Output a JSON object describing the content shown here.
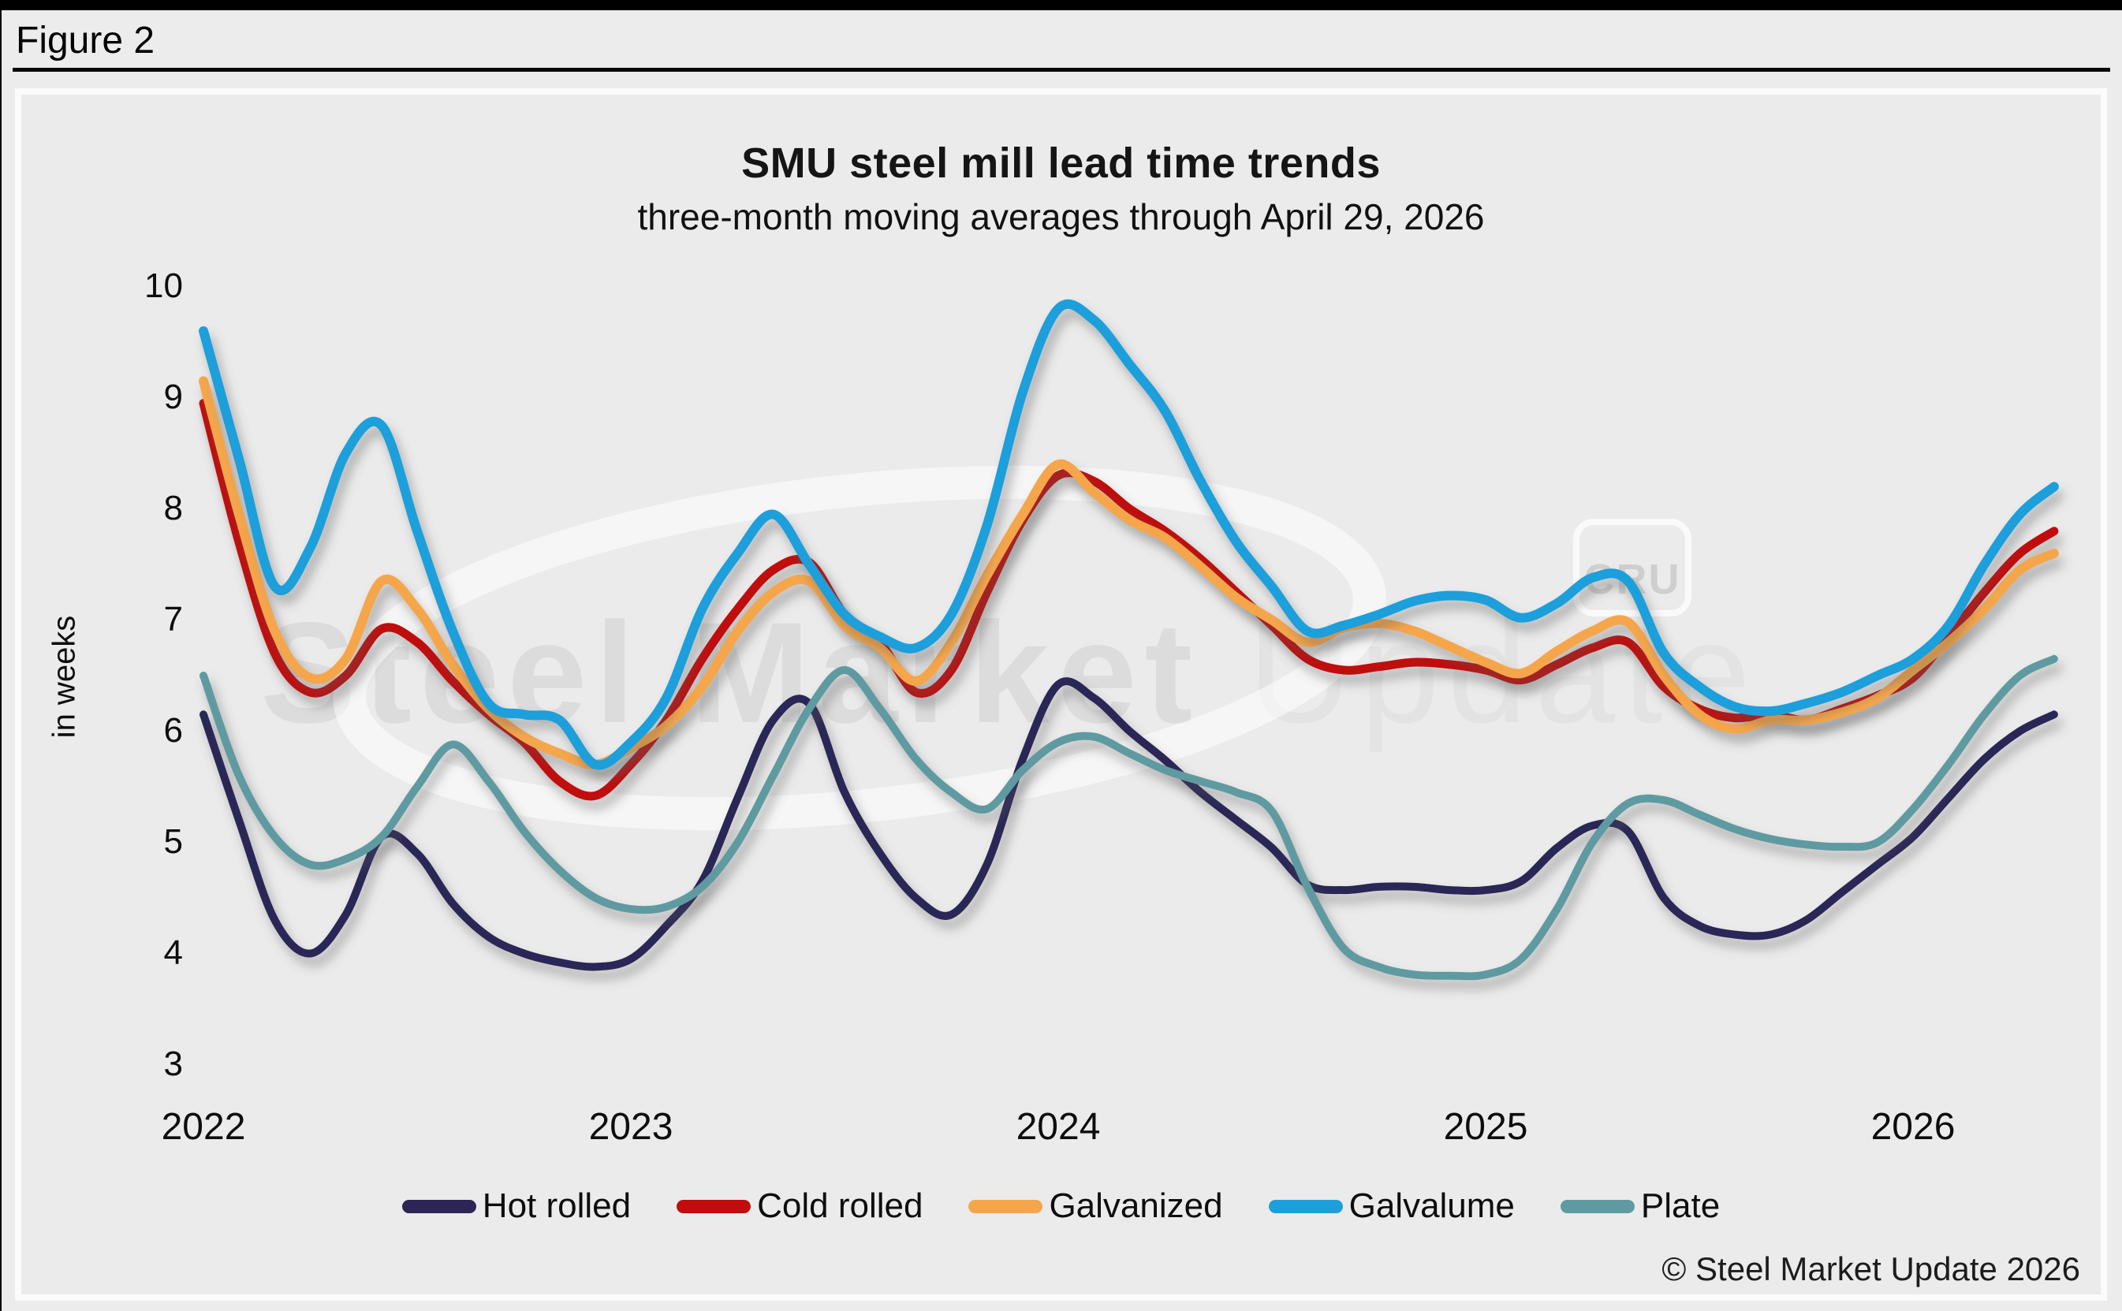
{
  "figure_label": "Figure 2",
  "chart_data": {
    "type": "line",
    "title": "SMU steel mill lead time trends",
    "subtitle": "three-month moving averages through April 29, 2026",
    "xlabel": "",
    "ylabel": "in weeks",
    "ylim": [
      3,
      10
    ],
    "yticks": [
      10,
      9,
      8,
      7,
      6,
      5,
      4,
      3
    ],
    "xticks": [
      2022,
      2023,
      2024,
      2025,
      2026
    ],
    "x_domain": [
      2022.0,
      2026.33
    ],
    "grid": false,
    "legend_position": "bottom",
    "x": [
      2022.0,
      2022.083,
      2022.167,
      2022.25,
      2022.333,
      2022.417,
      2022.5,
      2022.583,
      2022.667,
      2022.75,
      2022.833,
      2022.917,
      2023.0,
      2023.083,
      2023.167,
      2023.25,
      2023.333,
      2023.417,
      2023.5,
      2023.583,
      2023.667,
      2023.75,
      2023.833,
      2023.917,
      2024.0,
      2024.083,
      2024.167,
      2024.25,
      2024.333,
      2024.417,
      2024.5,
      2024.583,
      2024.667,
      2024.75,
      2024.833,
      2024.917,
      2025.0,
      2025.083,
      2025.167,
      2025.25,
      2025.333,
      2025.417,
      2025.5,
      2025.583,
      2025.667,
      2025.75,
      2025.833,
      2025.917,
      2026.0,
      2026.083,
      2026.167,
      2026.25,
      2026.33
    ],
    "series": [
      {
        "name": "Hot rolled",
        "color": "#2C2556",
        "values": [
          6.15,
          5.2,
          4.3,
          4.0,
          4.35,
          5.05,
          4.9,
          4.45,
          4.15,
          4.0,
          3.92,
          3.88,
          3.95,
          4.25,
          4.65,
          5.4,
          6.1,
          6.25,
          5.45,
          4.9,
          4.5,
          4.35,
          4.8,
          5.75,
          6.42,
          6.3,
          6.0,
          5.74,
          5.45,
          5.2,
          4.95,
          4.62,
          4.57,
          4.6,
          4.6,
          4.57,
          4.57,
          4.65,
          4.95,
          5.15,
          5.1,
          4.5,
          4.25,
          4.17,
          4.17,
          4.3,
          4.55,
          4.8,
          5.05,
          5.4,
          5.75,
          6.0,
          6.15
        ]
      },
      {
        "name": "Cold rolled",
        "color": "#C00D0D",
        "values": [
          8.95,
          7.7,
          6.7,
          6.35,
          6.5,
          6.92,
          6.8,
          6.45,
          6.15,
          5.9,
          5.55,
          5.42,
          5.7,
          6.1,
          6.65,
          7.1,
          7.45,
          7.52,
          7.05,
          6.8,
          6.35,
          6.55,
          7.25,
          7.9,
          8.3,
          8.25,
          8.0,
          7.8,
          7.55,
          7.25,
          6.95,
          6.65,
          6.55,
          6.58,
          6.62,
          6.6,
          6.55,
          6.46,
          6.6,
          6.75,
          6.8,
          6.4,
          6.2,
          6.12,
          6.15,
          6.1,
          6.2,
          6.32,
          6.48,
          6.85,
          7.25,
          7.6,
          7.8
        ]
      },
      {
        "name": "Galvanized",
        "color": "#F5A64B",
        "values": [
          9.15,
          7.95,
          6.9,
          6.48,
          6.65,
          7.35,
          7.1,
          6.6,
          6.2,
          5.95,
          5.8,
          5.7,
          5.85,
          6.05,
          6.4,
          6.9,
          7.25,
          7.35,
          6.95,
          6.75,
          6.45,
          6.8,
          7.4,
          7.95,
          8.4,
          8.15,
          7.9,
          7.74,
          7.48,
          7.2,
          7.0,
          6.8,
          6.93,
          6.97,
          6.9,
          6.76,
          6.62,
          6.52,
          6.72,
          6.9,
          6.98,
          6.5,
          6.15,
          6.02,
          6.1,
          6.1,
          6.17,
          6.3,
          6.55,
          6.8,
          7.1,
          7.45,
          7.6
        ]
      },
      {
        "name": "Galvalume",
        "color": "#1E9FDB",
        "values": [
          9.6,
          8.45,
          7.3,
          7.65,
          8.5,
          8.75,
          7.8,
          6.9,
          6.25,
          6.15,
          6.1,
          5.7,
          5.9,
          6.3,
          7.1,
          7.6,
          7.95,
          7.5,
          7.05,
          6.85,
          6.75,
          7.05,
          7.85,
          9.05,
          9.8,
          9.7,
          9.3,
          8.88,
          8.25,
          7.7,
          7.3,
          6.9,
          6.95,
          7.05,
          7.17,
          7.22,
          7.18,
          7.02,
          7.15,
          7.38,
          7.35,
          6.7,
          6.4,
          6.22,
          6.18,
          6.25,
          6.35,
          6.5,
          6.65,
          6.95,
          7.5,
          7.95,
          8.2
        ]
      },
      {
        "name": "Plate",
        "color": "#5F9AA1",
        "values": [
          6.5,
          5.6,
          5.05,
          4.8,
          4.85,
          5.05,
          5.5,
          5.88,
          5.55,
          5.1,
          4.75,
          4.5,
          4.4,
          4.42,
          4.6,
          5.0,
          5.6,
          6.2,
          6.55,
          6.2,
          5.75,
          5.45,
          5.3,
          5.65,
          5.9,
          5.95,
          5.8,
          5.65,
          5.55,
          5.45,
          5.28,
          4.6,
          4.05,
          3.88,
          3.81,
          3.8,
          3.81,
          3.95,
          4.4,
          5.0,
          5.35,
          5.38,
          5.25,
          5.12,
          5.03,
          4.98,
          4.96,
          5.0,
          5.3,
          5.7,
          6.15,
          6.5,
          6.65
        ]
      }
    ]
  },
  "yticks_text": {
    "t10": 10,
    "t9": 9,
    "t8": 8,
    "t7": 7,
    "t6": 6,
    "t5": 5,
    "t4": 4,
    "t3": 3
  },
  "xticks_text": {
    "x2022": 2022,
    "x2023": 2023,
    "x2024": 2024,
    "x2025": 2025,
    "x2026": 2026
  },
  "watermark": {
    "brand_primary": "Steel Market",
    "brand_secondary": "Update",
    "badge": "CRU"
  },
  "footer": {
    "copyright": "© Steel Market Update 2026"
  }
}
